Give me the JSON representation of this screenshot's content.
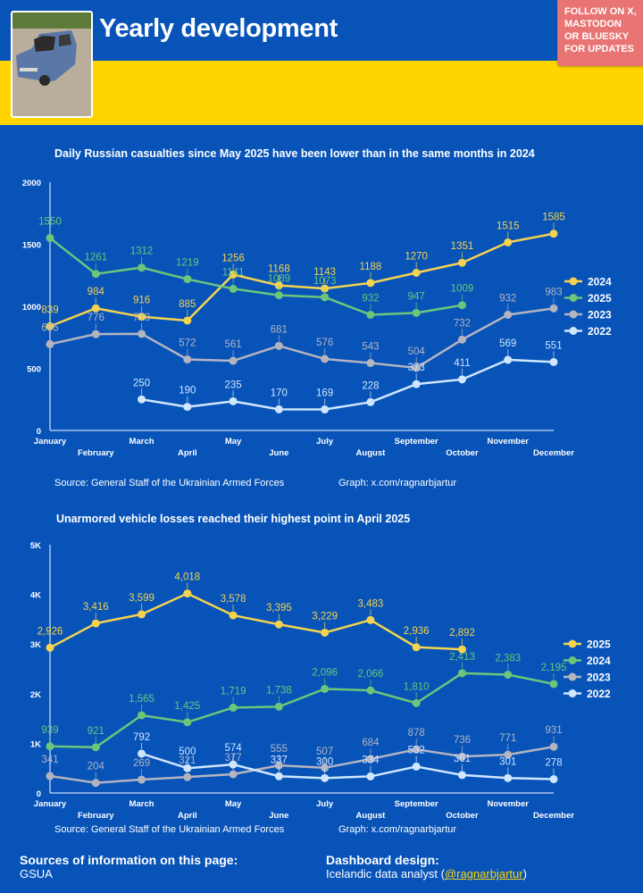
{
  "header": {
    "title": "Yearly development",
    "follow_note": "FOLLOW ON X,\nMASTODON\nOR BLUESKY\nFOR UPDATES",
    "photo_icon": "destroyed-car-photo"
  },
  "colors": {
    "background": "#0753b8",
    "flag_yellow": "#ffd500",
    "follow_badge": "#e87474",
    "series_yellow": "#f5d34f",
    "series_green": "#6cc57a",
    "series_gray": "#b4b4c0",
    "series_lightblue": "#cfe6ff"
  },
  "chart_data": [
    {
      "type": "line",
      "title": "Daily Russian casualties since May 2025 have been lower than in the same months in 2024",
      "xlabel": "",
      "ylabel": "",
      "categories": [
        "January",
        "February",
        "March",
        "April",
        "May",
        "June",
        "July",
        "August",
        "September",
        "October",
        "November",
        "December"
      ],
      "ylim": [
        0,
        2000
      ],
      "yticks": [
        "0",
        "500",
        "1000",
        "1500",
        "2000"
      ],
      "grid": false,
      "legend_position": "right",
      "series": [
        {
          "name": "2024",
          "color": "#f5d34f",
          "values": [
            839,
            984,
            916,
            885,
            1256,
            1168,
            1143,
            1188,
            1270,
            1351,
            1515,
            1585
          ]
        },
        {
          "name": "2025",
          "color": "#6cc57a",
          "values": [
            1550,
            1261,
            1312,
            1219,
            1141,
            1089,
            1073,
            932,
            947,
            1009,
            null,
            null
          ]
        },
        {
          "name": "2023",
          "color": "#b4b4c0",
          "values": [
            695,
            776,
            778,
            572,
            561,
            681,
            576,
            543,
            504,
            732,
            932,
            983
          ]
        },
        {
          "name": "2022",
          "color": "#cfe6ff",
          "values": [
            null,
            null,
            250,
            190,
            235,
            170,
            169,
            228,
            373,
            411,
            569,
            551
          ]
        }
      ],
      "source": "Source: General Staff of the Ukrainian Armed Forces",
      "credit": "Graph: x.com/ragnarbjartur"
    },
    {
      "type": "line",
      "title": "Unarmored vehicle losses reached their highest point in April 2025",
      "xlabel": "",
      "ylabel": "",
      "categories": [
        "January",
        "February",
        "March",
        "April",
        "May",
        "June",
        "July",
        "August",
        "September",
        "October",
        "November",
        "December"
      ],
      "ylim": [
        0,
        5000
      ],
      "yticks": [
        "0",
        "1K",
        "2K",
        "3K",
        "4K",
        "5K"
      ],
      "grid": false,
      "legend_position": "right",
      "series": [
        {
          "name": "2025",
          "color": "#f5d34f",
          "values": [
            2926,
            3416,
            3599,
            4018,
            3578,
            3395,
            3229,
            3483,
            2936,
            2892,
            null,
            null
          ]
        },
        {
          "name": "2024",
          "color": "#6cc57a",
          "values": [
            939,
            921,
            1565,
            1425,
            1719,
            1738,
            2096,
            2066,
            1810,
            2413,
            2383,
            2195
          ]
        },
        {
          "name": "2023",
          "color": "#b4b4c0",
          "values": [
            341,
            204,
            269,
            321,
            377,
            555,
            507,
            684,
            878,
            736,
            771,
            931
          ]
        },
        {
          "name": "2022",
          "color": "#cfe6ff",
          "values": [
            null,
            null,
            792,
            500,
            574,
            337,
            300,
            334,
            532,
            361,
            301,
            278
          ]
        }
      ],
      "source": "Source: General Staff of the Ukrainian Armed Forces",
      "credit": "Graph: x.com/ragnarbjartur"
    }
  ],
  "footer": {
    "sources_heading": "Sources of information on this page:",
    "sources_text": "GSUA",
    "design_heading": "Dashboard design:",
    "design_text_prefix": "Icelandic data analyst (",
    "design_link": "@ragnarbjartur",
    "design_text_suffix": ")"
  }
}
